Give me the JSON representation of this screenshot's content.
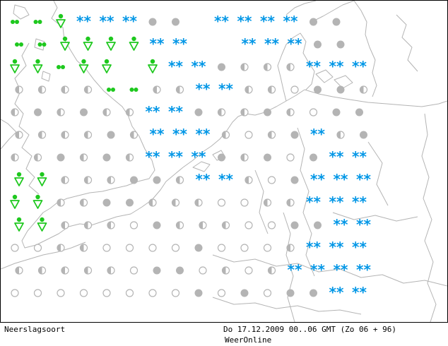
{
  "map": {
    "footer": {
      "map_name": "Neerslagsoort",
      "timestamp": "Do 17.12.2009 00..06 GMT (Zo 06 + 96)",
      "brand": "WeerOnline"
    },
    "colors": {
      "snow": "#0096e6",
      "rain": "#1ec81e",
      "dry": "#b4b4b4",
      "coastline": "#b4b4b4",
      "frame": "#000000"
    },
    "legend_symbols": {
      "F": "full-cloud-dot-icon",
      "H": "half-cloud-dot-icon",
      "E": "clear-circle-icon",
      "S": "snow-asterisk-icon",
      "D": "drizzle-dots-icon",
      "R": "rain-shower-icon"
    },
    "symbol_grid": [
      "D D R S S S F F . S S S S F F .",
      "D D R R R R S S . . S S S F F .",
      "R R D R R . R S S F H H H S S S",
      "H H H H D D H H S S H H E F F H",
      "H F H F H H S S F H H F H E F F",
      "H H H H F H S S S H E H F S H F",
      "H H F H F H S S S F H F E F S S",
      "R R H H H F F H S S H E F S S S",
      "R R H H F F H H H E E H H S S S",
      "R R H H H E F H H H E E F F S S",
      "E E H H E E E E F E E E H S S S",
      "H H H H H E F F E H E H S S S S",
      "E E E E E E E E F E F E F F S S"
    ]
  }
}
